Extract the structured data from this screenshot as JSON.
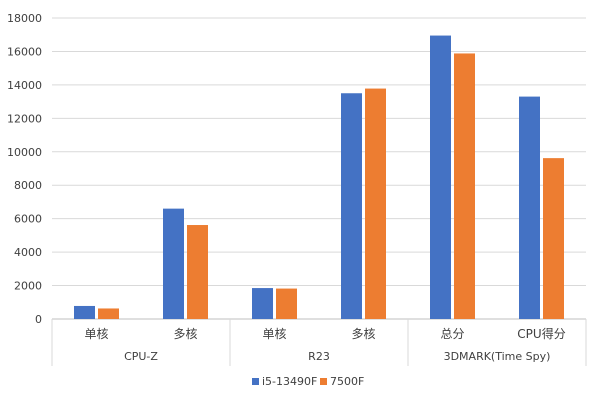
{
  "chart_data": {
    "type": "bar",
    "group_labels": [
      "CPU-Z",
      "R23",
      "3DMARK(Time Spy)"
    ],
    "groups": [
      {
        "label": "CPU-Z",
        "categories": [
          "单核",
          "多核"
        ]
      },
      {
        "label": "R23",
        "categories": [
          "单核",
          "多核"
        ]
      },
      {
        "label": "3DMARK(Time Spy)",
        "categories": [
          "总分",
          "CPU得分"
        ]
      }
    ],
    "categories": [
      "单核",
      "多核",
      "单核",
      "多核",
      "总分",
      "CPU得分"
    ],
    "series": [
      {
        "name": "i5-13490F",
        "color": "#4472C4",
        "values": [
          780,
          6600,
          1850,
          13500,
          16950,
          13300
        ]
      },
      {
        "name": "7500F",
        "color": "#ED7D31",
        "values": [
          630,
          5620,
          1820,
          13780,
          15880,
          9620
        ]
      }
    ],
    "ylim": [
      0,
      18000
    ],
    "yticks": [
      0,
      2000,
      4000,
      6000,
      8000,
      10000,
      12000,
      14000,
      16000,
      18000
    ],
    "grid": true,
    "legend_position": "bottom",
    "title": "",
    "xlabel": "",
    "ylabel": ""
  }
}
